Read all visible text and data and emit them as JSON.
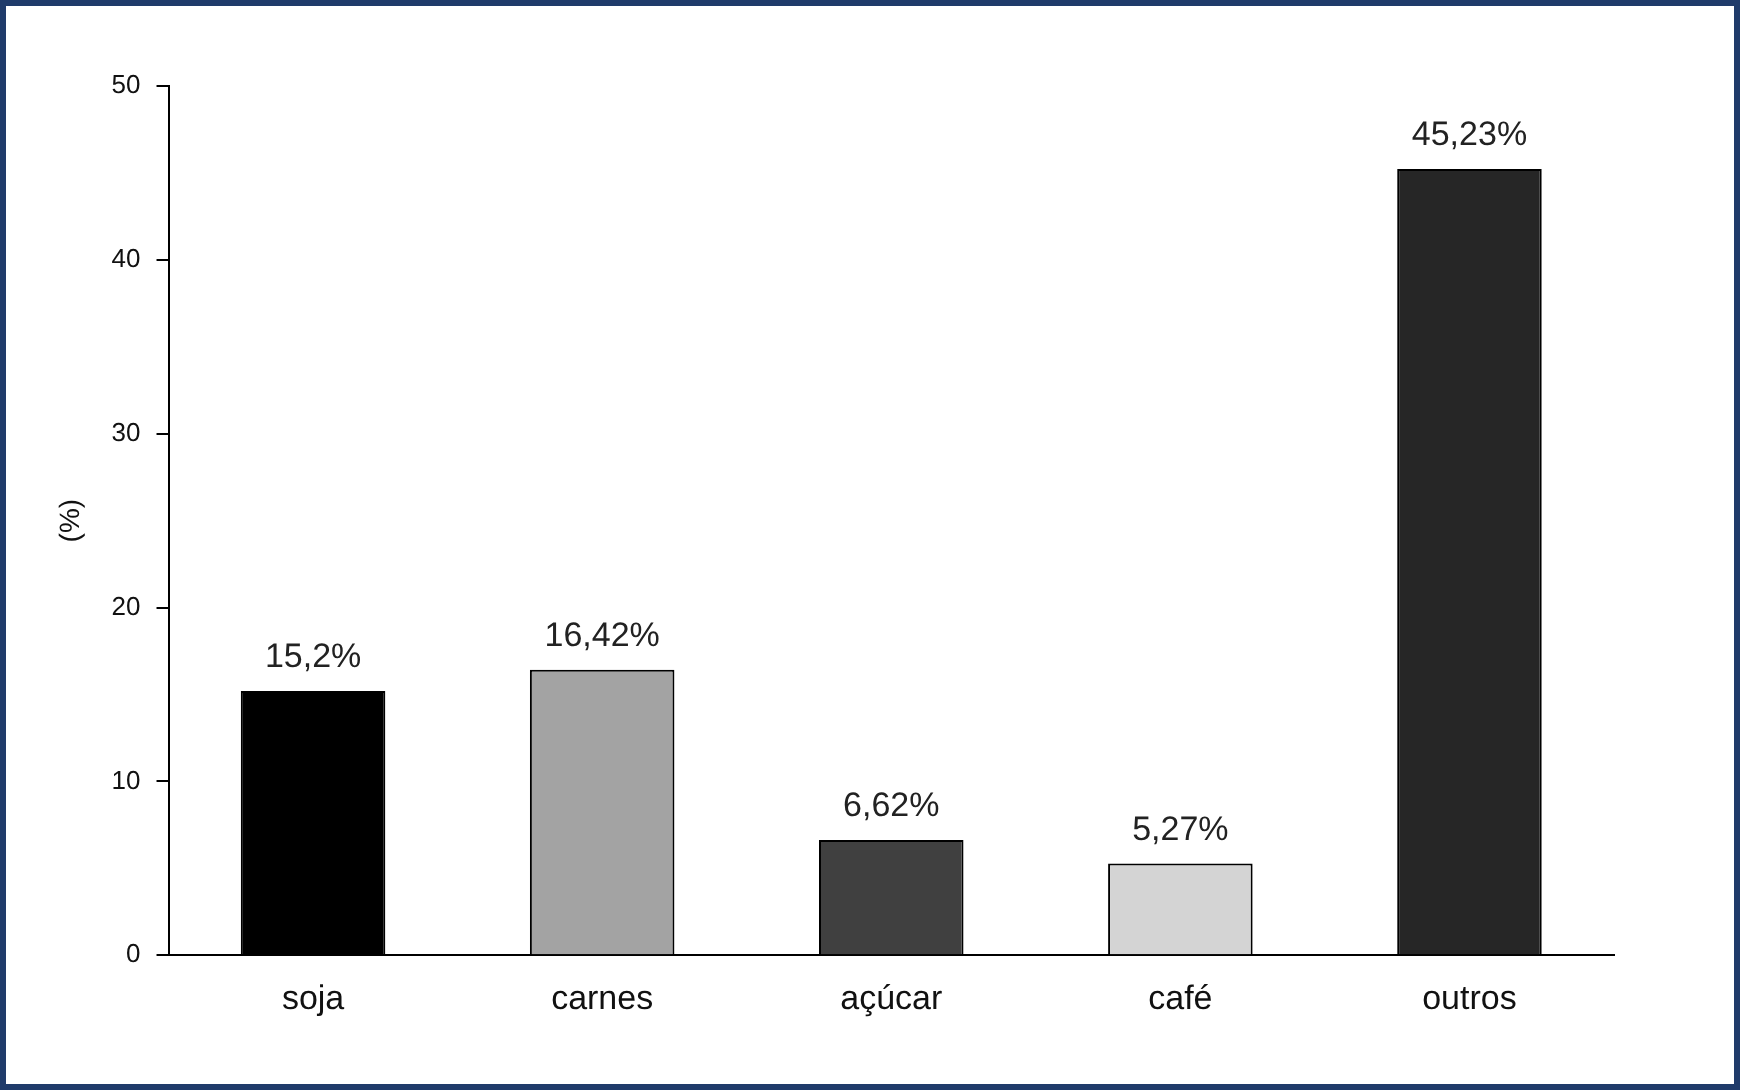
{
  "chart_data": {
    "type": "bar",
    "ylabel": "(%)",
    "categories": [
      "soja",
      "carnes",
      "açúcar",
      "café",
      "outros"
    ],
    "values": [
      15.2,
      16.42,
      6.62,
      5.27,
      45.23
    ],
    "colors": [
      "#000000",
      "#a3a3a3",
      "#404040",
      "#d4d4d4",
      "#262626"
    ],
    "value_labels": [
      "15,2%",
      "16,42%",
      "6,62%",
      "5,27%",
      "45,23%"
    ],
    "ylim": [
      0,
      50
    ],
    "yticks": [
      0,
      10,
      20,
      30,
      40,
      50
    ],
    "grid": false
  }
}
